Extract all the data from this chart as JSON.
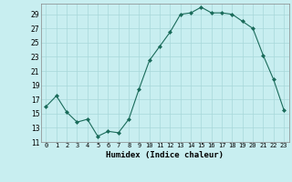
{
  "x": [
    0,
    1,
    2,
    3,
    4,
    5,
    6,
    7,
    8,
    9,
    10,
    11,
    12,
    13,
    14,
    15,
    16,
    17,
    18,
    19,
    20,
    21,
    22,
    23
  ],
  "y": [
    16,
    17.5,
    15.2,
    13.8,
    14.2,
    11.8,
    12.5,
    12.3,
    14.2,
    18.5,
    22.5,
    24.5,
    26.5,
    29.0,
    29.2,
    30.0,
    29.2,
    29.2,
    29.0,
    28.0,
    27.0,
    23.2,
    19.8,
    15.5
  ],
  "title": "",
  "xlabel": "Humidex (Indice chaleur)",
  "ylabel": "",
  "bg_color": "#c8eef0",
  "line_color": "#1a6b5a",
  "marker_color": "#1a6b5a",
  "grid_color": "#a8d8da",
  "ylim": [
    11,
    30.5
  ],
  "xlim": [
    -0.5,
    23.5
  ],
  "yticks": [
    11,
    13,
    15,
    17,
    19,
    21,
    23,
    25,
    27,
    29
  ],
  "xtick_labels": [
    "0",
    "1",
    "2",
    "3",
    "4",
    "5",
    "6",
    "7",
    "8",
    "9",
    "10",
    "11",
    "12",
    "13",
    "14",
    "15",
    "16",
    "17",
    "18",
    "19",
    "20",
    "21",
    "22",
    "23"
  ]
}
